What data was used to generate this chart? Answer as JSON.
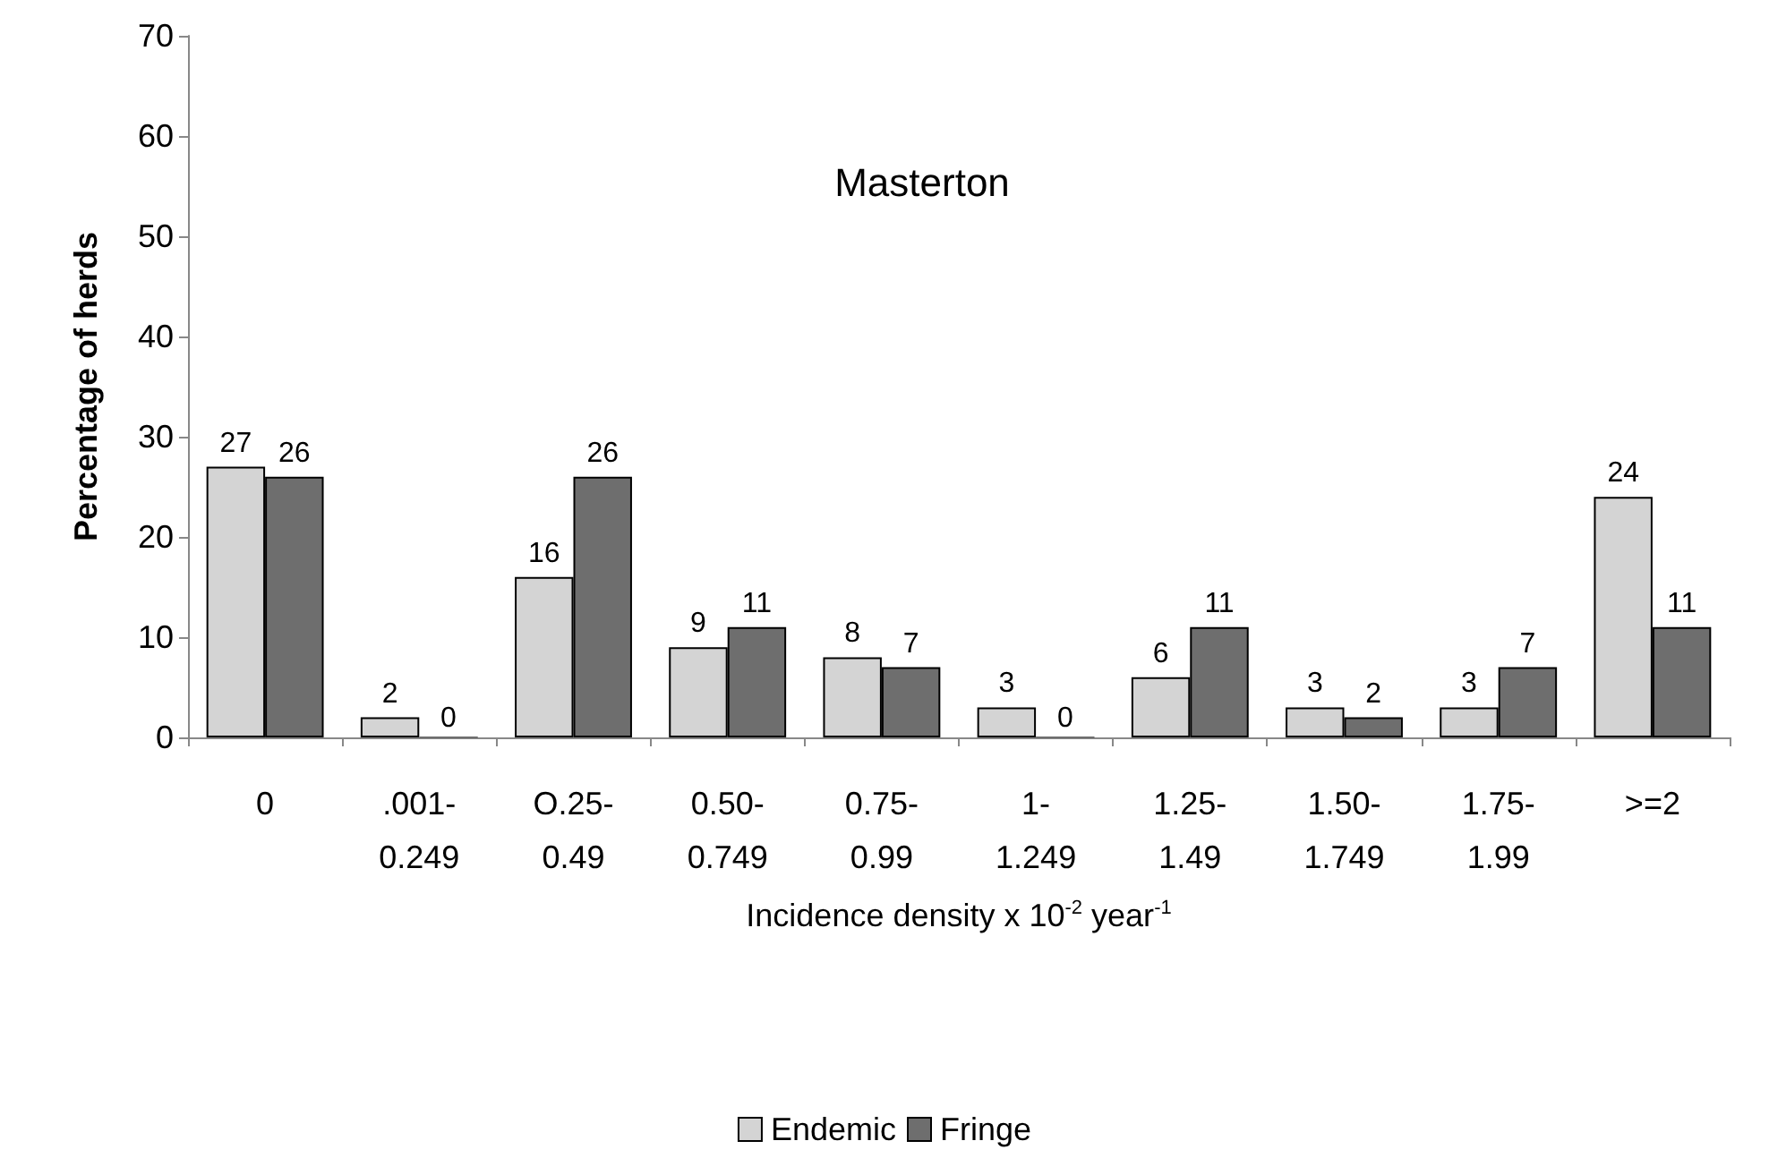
{
  "chart_data": {
    "type": "bar",
    "title": "Masterton",
    "categories": [
      "0",
      ".001-\n0.249",
      "O.25-\n0.49",
      "0.50-\n0.749",
      "0.75-\n0.99",
      "1-\n1.249",
      "1.25-\n1.49",
      "1.50-\n1.749",
      "1.75-\n1.99",
      ">=2"
    ],
    "series": [
      {
        "name": "Endemic",
        "color": "#d4d4d4",
        "values": [
          27,
          2,
          16,
          9,
          8,
          3,
          6,
          3,
          3,
          24
        ]
      },
      {
        "name": "Fringe",
        "color": "#6e6e6e",
        "values": [
          26,
          0,
          26,
          11,
          7,
          0,
          11,
          2,
          7,
          11
        ]
      }
    ],
    "xlabel": "Incidence density x 10$^{-2}$ year$^{-1}$",
    "ylabel": "Percentage of herds",
    "ylim": [
      0,
      70
    ],
    "yticks": [
      0,
      10,
      20,
      30,
      40,
      50,
      60,
      70
    ],
    "data_labels": true,
    "legend": "bottom"
  }
}
